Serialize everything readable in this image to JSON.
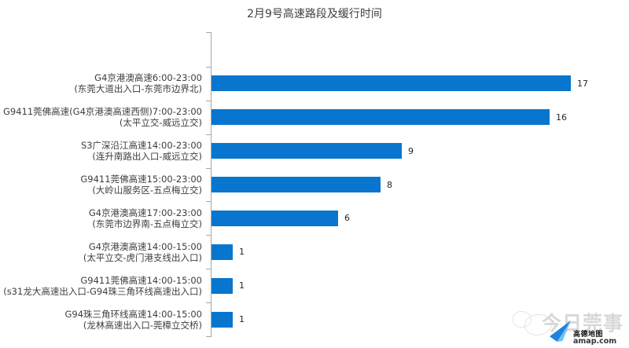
{
  "colors": {
    "bar": "#0876CE",
    "axis": "#A6A6A6",
    "title_text": "#404040",
    "label_text": "#3D3D3D",
    "watermark_gray": "#D8D8D8",
    "amap_blue": "#1F82DD",
    "amap_blue_light": "#6FC3F2"
  },
  "chart_data": {
    "type": "bar",
    "orientation": "horizontal",
    "title": "2月9号高速路段及缓行时间",
    "xlabel": "",
    "ylabel": "",
    "value_axis_range": [
      0,
      18
    ],
    "grid": false,
    "legend": "none",
    "data_labels": true,
    "rows": [
      {
        "line1": "G4京港澳高速6:00-23:00",
        "line2": "(东莞大道出入口-东莞市边界北)",
        "value": 17
      },
      {
        "line1": "G9411莞佛高速(G4京港澳高速西侧)7:00-23:00",
        "line2": "(太平立交-威远立交)",
        "value": 16
      },
      {
        "line1": "S3广深沿江高速14:00-23:00",
        "line2": "(连升南路出入口-威远立交)",
        "value": 9
      },
      {
        "line1": "G9411莞佛高速15:00-23:00",
        "line2": "(大岭山服务区-五点梅立交)",
        "value": 8
      },
      {
        "line1": "G4京港澳高速17:00-23:00",
        "line2": "(东莞市边界南-五点梅立交)",
        "value": 6
      },
      {
        "line1": "G4京港澳高速14:00-15:00",
        "line2": "(太平立交-虎门港支线出入口)",
        "value": 1
      },
      {
        "line1": "G9411莞佛高速14:00-15:00",
        "line2": "(s31龙大高速出入口-G94珠三角环线高速出入口)",
        "value": 1
      },
      {
        "line1": "G94珠三角环线高速14:00-15:00",
        "line2": "(龙林高速出入口-莞樟立交桥)",
        "value": 1
      }
    ]
  },
  "watermark": {
    "brand": "今日莞事",
    "map_brand": "高德地图",
    "map_domain": "amap.com"
  }
}
